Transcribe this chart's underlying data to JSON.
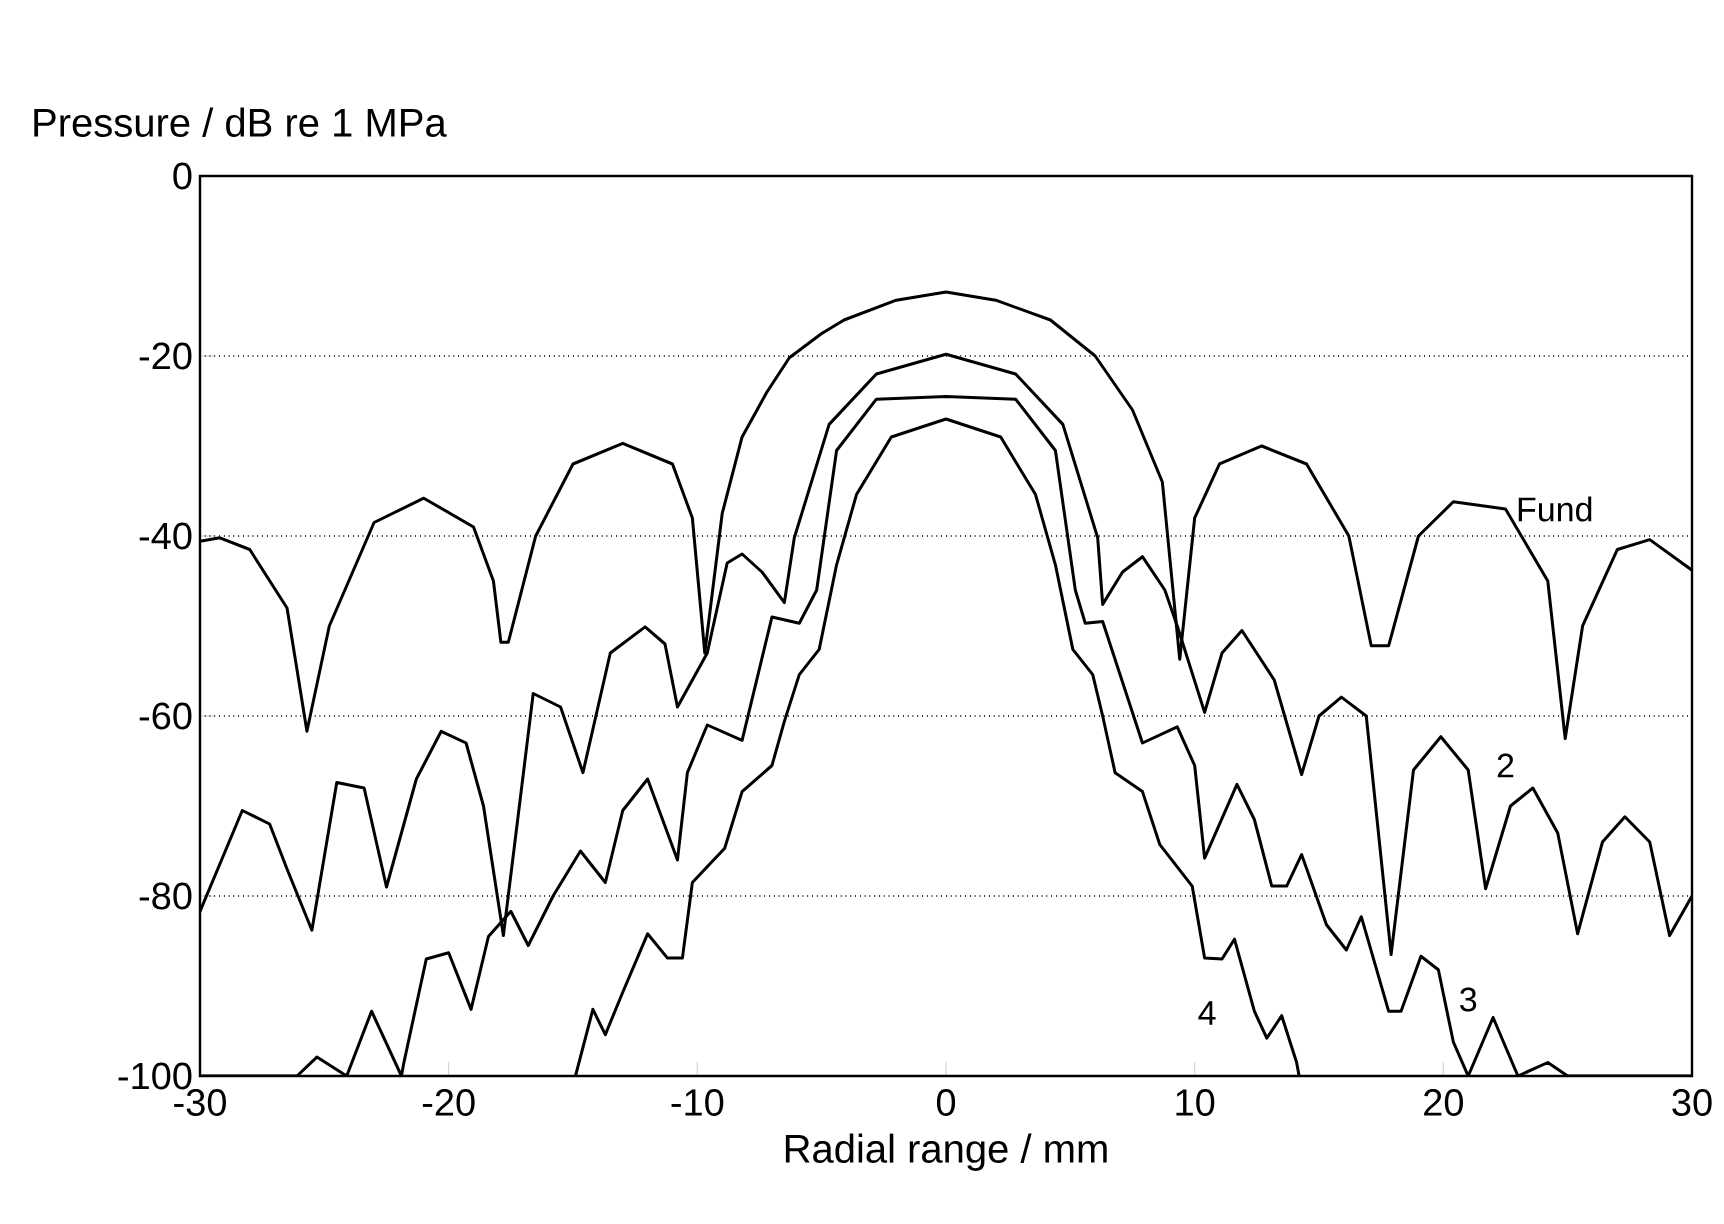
{
  "chart_data": {
    "type": "line",
    "ylabel": "Pressure / dB re 1 MPa",
    "xlabel": "Radial range / mm",
    "xlim": [
      -30,
      30
    ],
    "ylim": [
      -100,
      0
    ],
    "xticks": [
      -30,
      -20,
      -10,
      0,
      10,
      20,
      30
    ],
    "yticks": [
      -100,
      -80,
      -60,
      -40,
      -20,
      0
    ],
    "grid": "y",
    "marker": "none",
    "line_style": "solid",
    "series": [
      {
        "name": "Fund",
        "color": "#000000",
        "x": [
          -30,
          -29.2,
          -28,
          -26.5,
          -25.7,
          -24.8,
          -23,
          -21,
          -19,
          -18.2,
          -17.9,
          -17.6,
          -16.5,
          -15,
          -13,
          -11,
          -10.2,
          -9.7,
          -9.0,
          -8.2,
          -7.2,
          -6.3,
          -5,
          -4.1,
          -2,
          0,
          2,
          4.2,
          6.0,
          7.5,
          8.7,
          9.4,
          10,
          11,
          12.7,
          14.5,
          16.2,
          17.1,
          17.8,
          19,
          20.4,
          22.5,
          24.2,
          24.9,
          25.6,
          27,
          28.3,
          30
        ],
        "values": [
          -40.6,
          -40.2,
          -41.5,
          -48,
          -61.7,
          -50,
          -38.5,
          -35.8,
          -39,
          -45,
          -51.8,
          -51.8,
          -40,
          -32,
          -29.7,
          -32,
          -38,
          -53,
          -37.5,
          -29,
          -24,
          -20.2,
          -17.5,
          -16,
          -13.8,
          -12.9,
          -13.8,
          -16,
          -20,
          -26,
          -34,
          -53.7,
          -38,
          -32,
          -30,
          -32,
          -40,
          -52.2,
          -52.2,
          -40,
          -36.2,
          -37,
          -45,
          -62.5,
          -50,
          -41.5,
          -40.4,
          -43.8
        ]
      },
      {
        "name": "2",
        "color": "#000000",
        "x": [
          -30,
          -28.3,
          -27.2,
          -26.5,
          -25.5,
          -24.5,
          -23.4,
          -22.5,
          -21.3,
          -20.3,
          -19.3,
          -18.6,
          -17.8,
          -16.6,
          -15.5,
          -14.6,
          -13.5,
          -12.1,
          -11.3,
          -10.8,
          -9.6,
          -8.8,
          -8.2,
          -7.4,
          -6.5,
          -6.1,
          -4.7,
          -2.8,
          0,
          2.8,
          4.7,
          6.1,
          6.3,
          7.1,
          7.9,
          8.8,
          9.3,
          10.4,
          11.1,
          11.9,
          13.2,
          14.3,
          15.0,
          15.9,
          16.9,
          17.9,
          18.8,
          19.9,
          21.0,
          21.7,
          22.7,
          23.6,
          24.6,
          25.4,
          26.4,
          27.3,
          28.3,
          29.1,
          30
        ],
        "values": [
          -81.7,
          -70.5,
          -72,
          -77,
          -83.8,
          -67.4,
          -68,
          -79,
          -67,
          -61.7,
          -63,
          -70,
          -84.4,
          -57.5,
          -59,
          -66.3,
          -53,
          -50.1,
          -52,
          -59,
          -53,
          -43,
          -42,
          -44,
          -47.4,
          -40.2,
          -27.6,
          -22,
          -19.8,
          -22,
          -27.6,
          -40.2,
          -47.6,
          -44,
          -42.3,
          -46,
          -50,
          -59.6,
          -53,
          -50.5,
          -56,
          -66.5,
          -60,
          -57.9,
          -60,
          -86.5,
          -66,
          -62.3,
          -66,
          -79.2,
          -70,
          -68,
          -73,
          -84.2,
          -74,
          -71.2,
          -74,
          -84.4,
          -80
        ]
      },
      {
        "name": "3",
        "color": "#000000",
        "x": [
          -30,
          -28,
          -26.1,
          -25.3,
          -24.1,
          -23.1,
          -21.9,
          -21.8,
          -20.9,
          -20,
          -19.1,
          -18.4,
          -17.5,
          -16.8,
          -15.8,
          -14.7,
          -13.7,
          -13,
          -12,
          -10.8,
          -10.4,
          -9.6,
          -8.2,
          -7,
          -5.9,
          -5.2,
          -4.4,
          -2.8,
          0,
          2.8,
          4.4,
          5.2,
          5.6,
          6.3,
          7.9,
          9.3,
          10,
          10.4,
          11.7,
          12.4,
          13.1,
          13.7,
          14.3,
          15.3,
          16.1,
          16.7,
          17.8,
          18.3,
          19.1,
          19.8,
          20.4,
          21,
          22,
          23,
          24.2,
          25,
          27,
          30
        ],
        "values": [
          -100,
          -100,
          -100,
          -97.9,
          -100,
          -92.8,
          -100,
          -98.5,
          -87,
          -86.3,
          -92.6,
          -84.5,
          -81.7,
          -85.5,
          -80,
          -75,
          -78.5,
          -70.5,
          -67,
          -76,
          -66.3,
          -61,
          -62.7,
          -49,
          -49.7,
          -46,
          -30.5,
          -24.8,
          -24.5,
          -24.8,
          -30.5,
          -46,
          -49.7,
          -49.5,
          -63,
          -61.2,
          -65.5,
          -75.8,
          -67.6,
          -71.5,
          -78.9,
          -78.9,
          -75.4,
          -83.2,
          -86,
          -82.3,
          -92.8,
          -92.8,
          -86.7,
          -88.2,
          -96.2,
          -100,
          -93.5,
          -100,
          -98.5,
          -100,
          -100,
          -100
        ]
      },
      {
        "name": "4",
        "color": "#000000",
        "x": [
          -14.9,
          -14.2,
          -13.7,
          -13,
          -12,
          -11.2,
          -10.6,
          -10.2,
          -8.9,
          -8.2,
          -7,
          -6.5,
          -5.9,
          -5.1,
          -4.4,
          -3.6,
          -2.2,
          0,
          2.2,
          3.6,
          4.4,
          5.1,
          5.9,
          6.3,
          6.8,
          7.9,
          8.6,
          9.9,
          10.4,
          11.1,
          11.6,
          12.4,
          12.9,
          13.5,
          14.1,
          14.2
        ],
        "values": [
          -100,
          -92.6,
          -95.4,
          -90.7,
          -84.2,
          -86.9,
          -86.9,
          -78.5,
          -74.7,
          -68.4,
          -65.5,
          -60.6,
          -55.4,
          -52.6,
          -43.2,
          -35.4,
          -29,
          -27,
          -29,
          -35.4,
          -43.2,
          -52.6,
          -55.4,
          -60,
          -66.3,
          -68.4,
          -74.3,
          -78.9,
          -86.9,
          -87,
          -84.8,
          -92.8,
          -95.8,
          -93.3,
          -98.5,
          -100
        ]
      }
    ]
  }
}
